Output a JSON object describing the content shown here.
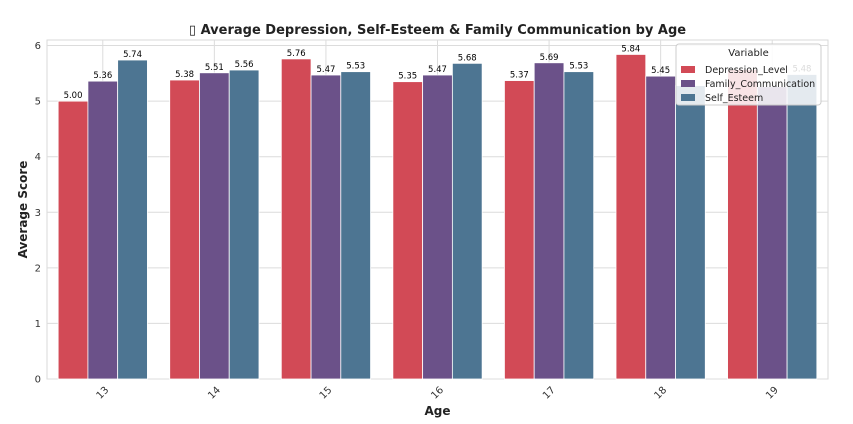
{
  "chart_data": {
    "type": "bar",
    "title": "▯ Average Depression, Self-Esteem & Family Communication by Age",
    "xlabel": "Age",
    "ylabel": "Average Score",
    "categories": [
      "13",
      "14",
      "15",
      "16",
      "17",
      "18",
      "19"
    ],
    "ylim": [
      0,
      6.1
    ],
    "yticks": [
      0,
      1,
      2,
      3,
      4,
      5,
      6
    ],
    "grid": true,
    "legend": {
      "title": "Variable",
      "placement": "top-right"
    },
    "series": [
      {
        "name": "Depression_Level",
        "color": "#d24a56",
        "values": [
          5.0,
          5.38,
          5.76,
          5.35,
          5.37,
          5.84,
          5.57
        ],
        "labels": [
          "5.00",
          "5.38",
          "5.76",
          "5.35",
          "5.37",
          "5.84",
          ""
        ]
      },
      {
        "name": "Family_Communication",
        "color": "#6b5189",
        "values": [
          5.36,
          5.51,
          5.47,
          5.47,
          5.69,
          5.45,
          5.26
        ],
        "labels": [
          "5.36",
          "5.51",
          "5.47",
          "5.47",
          "5.69",
          "5.45",
          ""
        ]
      },
      {
        "name": "Self_Esteem",
        "color": "#4d7592",
        "values": [
          5.74,
          5.56,
          5.53,
          5.68,
          5.53,
          5.28,
          5.48
        ],
        "labels": [
          "5.74",
          "5.56",
          "5.53",
          "5.68",
          "5.53",
          "",
          "5.48"
        ]
      }
    ]
  }
}
